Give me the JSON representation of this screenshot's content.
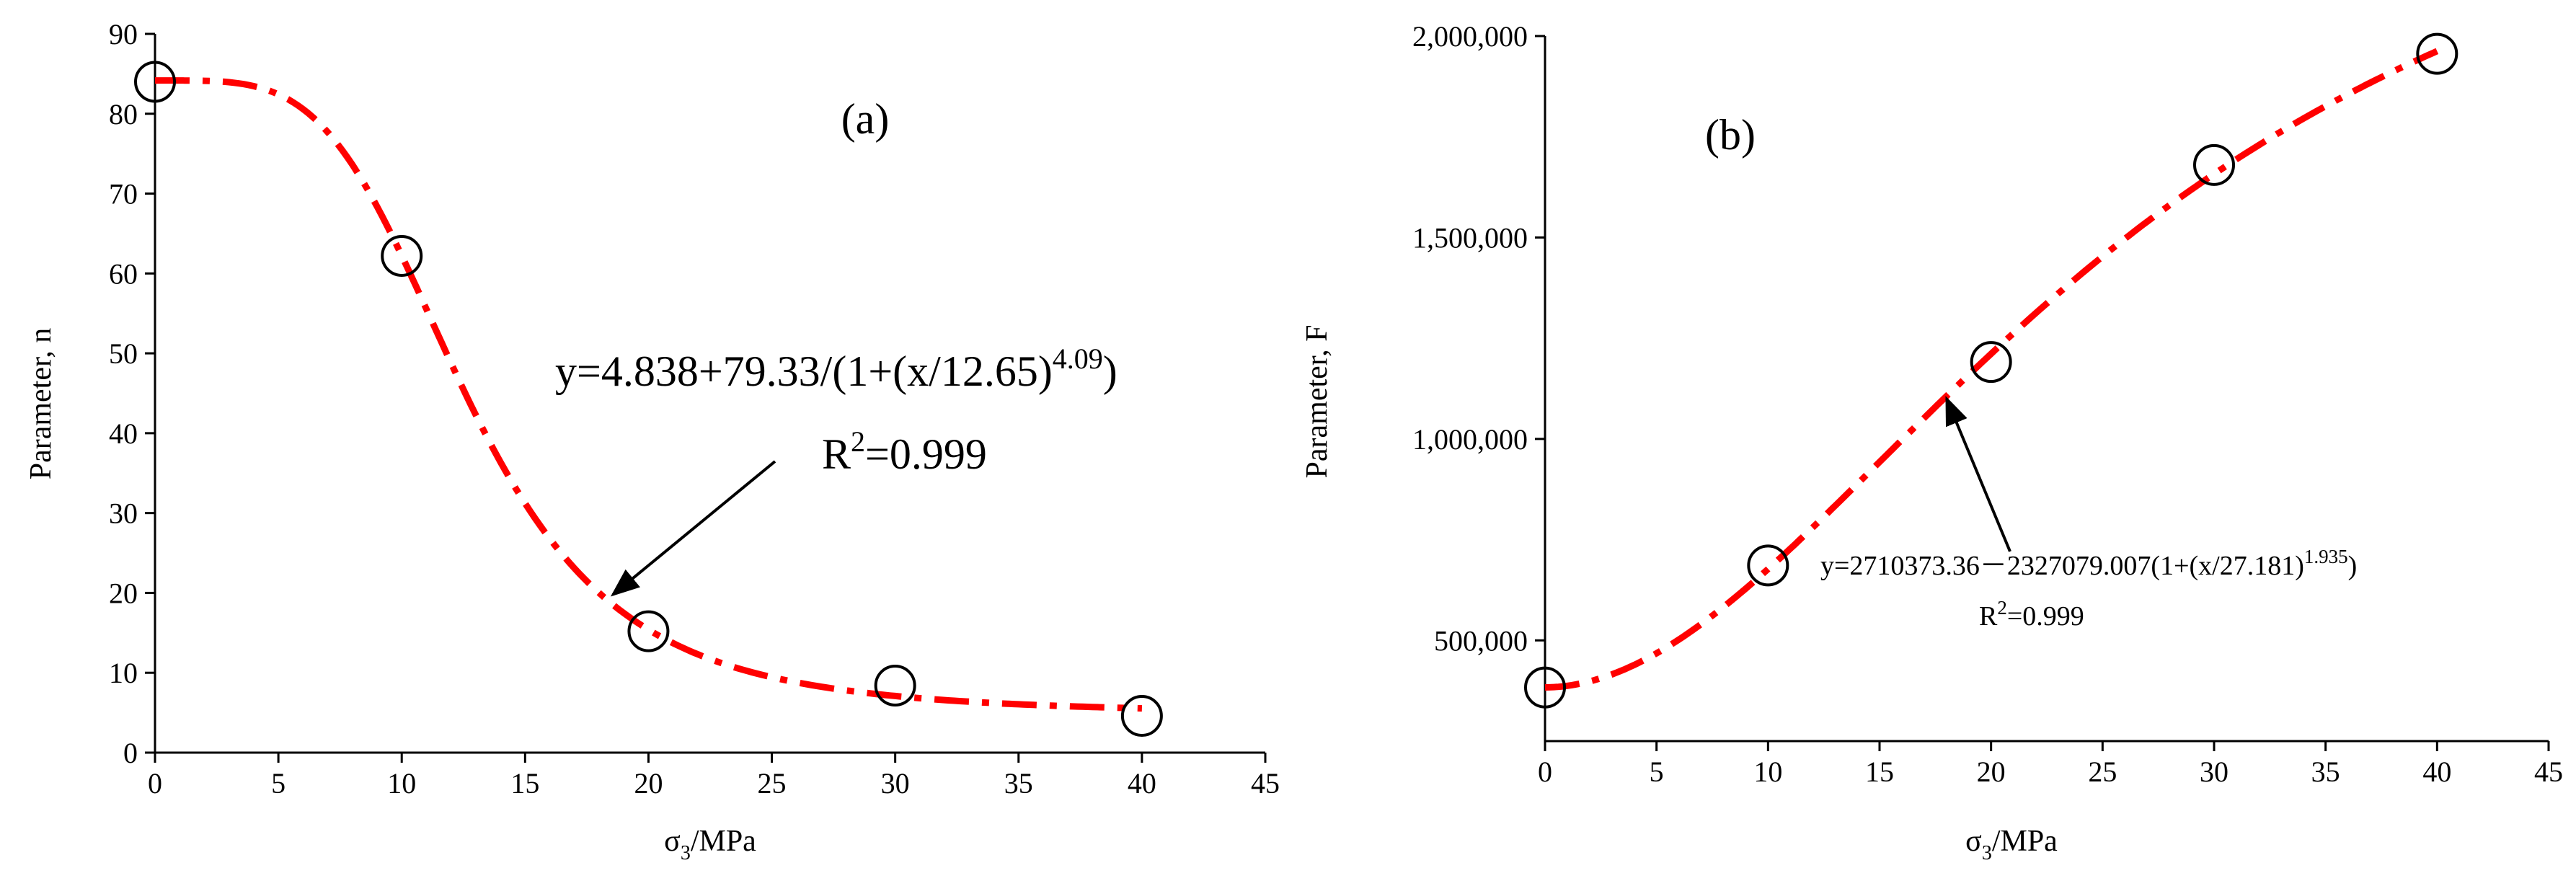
{
  "chart_data": [
    {
      "type": "scatter",
      "panel_label": "(a)",
      "ylabel": "Parameter, n",
      "xlabel_main": "σ",
      "xlabel_sub": "3",
      "xlabel_rest": "/MPa",
      "xlim": [
        0,
        45
      ],
      "ylim": [
        0,
        90
      ],
      "x_ticks": [
        0,
        5,
        10,
        15,
        20,
        25,
        30,
        35,
        40,
        45
      ],
      "y_ticks": [
        0,
        10,
        20,
        30,
        40,
        50,
        60,
        70,
        80,
        90
      ],
      "y_tick_labels": [
        "0",
        "10",
        "20",
        "30",
        "40",
        "50",
        "60",
        "70",
        "80",
        "90"
      ],
      "grid": false,
      "series": [
        {
          "kind": "points",
          "marker": "open-circle",
          "x": [
            0,
            10,
            20,
            30,
            40
          ],
          "y": [
            84,
            62.2,
            15.2,
            8.4,
            4.6
          ]
        },
        {
          "kind": "fit",
          "style": "dash-dot",
          "color": "#ff0000",
          "model": {
            "A2": 4.838,
            "dA": 79.33,
            "x0": 12.65,
            "p": 4.09,
            "sign": 1
          },
          "x_range": [
            0,
            40
          ]
        }
      ],
      "equation_main": "y=4.838+79.33/(1+(x/12.65)",
      "equation_exp": "4.09",
      "equation_close": ")",
      "r2_main": "R",
      "r2_sup": "2",
      "r2_rest": "=0.999"
    },
    {
      "type": "scatter",
      "panel_label": "(b)",
      "ylabel": "Parameter, F",
      "xlabel_main": "σ",
      "xlabel_sub": "3",
      "xlabel_rest": "/MPa",
      "xlim": [
        0,
        45
      ],
      "ylim": [
        250000,
        2000000
      ],
      "x_ticks": [
        0,
        5,
        10,
        15,
        20,
        25,
        30,
        35,
        40,
        45
      ],
      "y_ticks": [
        500000,
        1000000,
        1500000,
        2000000
      ],
      "y_tick_labels": [
        "500,000",
        "1,000,000",
        "1,500,000",
        "2,000,000"
      ],
      "grid": false,
      "series": [
        {
          "kind": "points",
          "marker": "open-circle",
          "x": [
            0,
            10,
            20,
            30,
            40
          ],
          "y": [
            383000,
            686000,
            1191000,
            1680000,
            1956000
          ]
        },
        {
          "kind": "fit",
          "style": "dash-dot",
          "color": "#ff0000",
          "model": {
            "A2": 2710373.36,
            "dA": 2327079.007,
            "x0": 27.181,
            "p": 1.935,
            "sign": -1
          },
          "x_range": [
            0,
            40
          ]
        }
      ],
      "equation_main": "y=2710373.36－2327079.007(1+(x/27.181)",
      "equation_exp": "1.935",
      "equation_close": ")",
      "r2_main": "R",
      "r2_sup": "2",
      "r2_rest": "=0.999"
    }
  ],
  "colors": {
    "fit": "#ff0000",
    "marker": "#000000",
    "axis": "#000000"
  }
}
